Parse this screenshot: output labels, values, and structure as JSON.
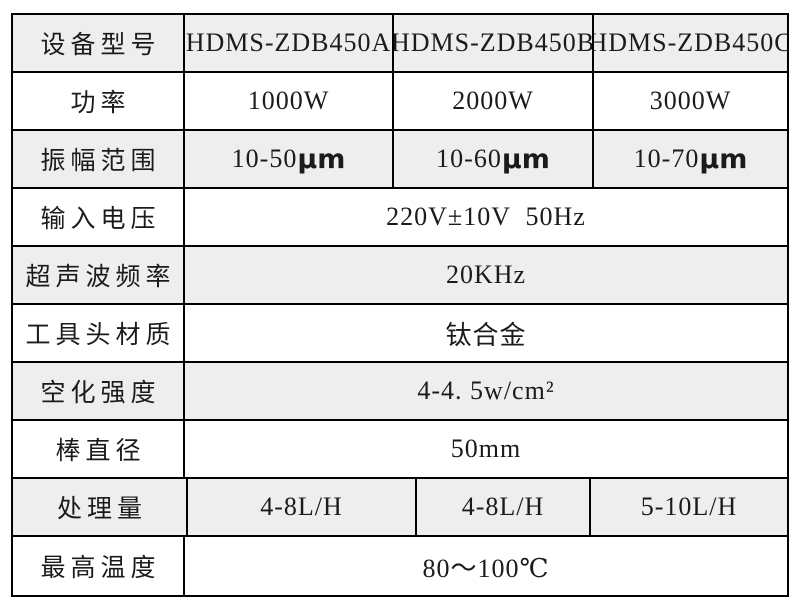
{
  "colors": {
    "row_shaded": "#eeeeee",
    "row_plain": "#ffffff",
    "grid_border": "#000000",
    "text": "#1b1b1b"
  },
  "table": {
    "rows": [
      {
        "label": "设备型号",
        "values": [
          "HDMS-ZDB450A",
          "HDMS-ZDB450B",
          "HDMS-ZDB450C"
        ]
      },
      {
        "label": "功率",
        "values": [
          "1000W",
          "2000W",
          "3000W"
        ]
      },
      {
        "label": "振幅范围",
        "values": [
          {
            "num": "10-50",
            "unit": "μm"
          },
          {
            "num": "10-60",
            "unit": "μm"
          },
          {
            "num": "10-70",
            "unit": "μm"
          }
        ]
      },
      {
        "label": "输入电压",
        "value": "220V±10V  50Hz"
      },
      {
        "label": "超声波频率",
        "value": "20KHz"
      },
      {
        "label": "工具头材质",
        "value": "钛合金"
      },
      {
        "label": "空化强度",
        "value": "4-4. 5w/cm²"
      },
      {
        "label": "棒直径",
        "value": "50mm"
      },
      {
        "label": "处理量",
        "values": [
          "4-8L/H",
          "4-8L/H",
          "5-10L/H"
        ]
      },
      {
        "label": "最高温度",
        "value": "80～100℃"
      }
    ]
  }
}
